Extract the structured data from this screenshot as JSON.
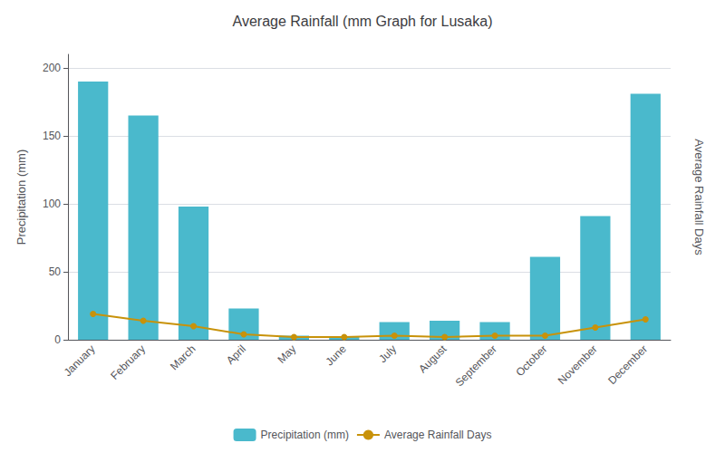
{
  "chart_data": {
    "type": "bar",
    "title": "Average Rainfall (mm Graph for Lusaka)",
    "categories": [
      "January",
      "February",
      "March",
      "April",
      "May",
      "June",
      "July",
      "August",
      "September",
      "October",
      "November",
      "December"
    ],
    "series": [
      {
        "name": "Precipitation (mm)",
        "type": "bar",
        "color": "#4ab9cc",
        "values": [
          190,
          165,
          98,
          23,
          3,
          2,
          13,
          14,
          13,
          61,
          91,
          181
        ]
      },
      {
        "name": "Average Rainfall Days",
        "type": "line",
        "color": "#c8920a",
        "marker": "circle",
        "values": [
          19,
          14,
          10,
          4,
          2,
          2,
          3,
          2,
          3,
          3,
          9,
          15
        ]
      }
    ],
    "ylabel": "Precipitation (mm)",
    "y2label": "Average Rainfall Days",
    "ylim": [
      0,
      210
    ],
    "yticks": [
      0,
      50,
      100,
      150,
      200
    ],
    "grid": true,
    "legend": "bottom"
  }
}
